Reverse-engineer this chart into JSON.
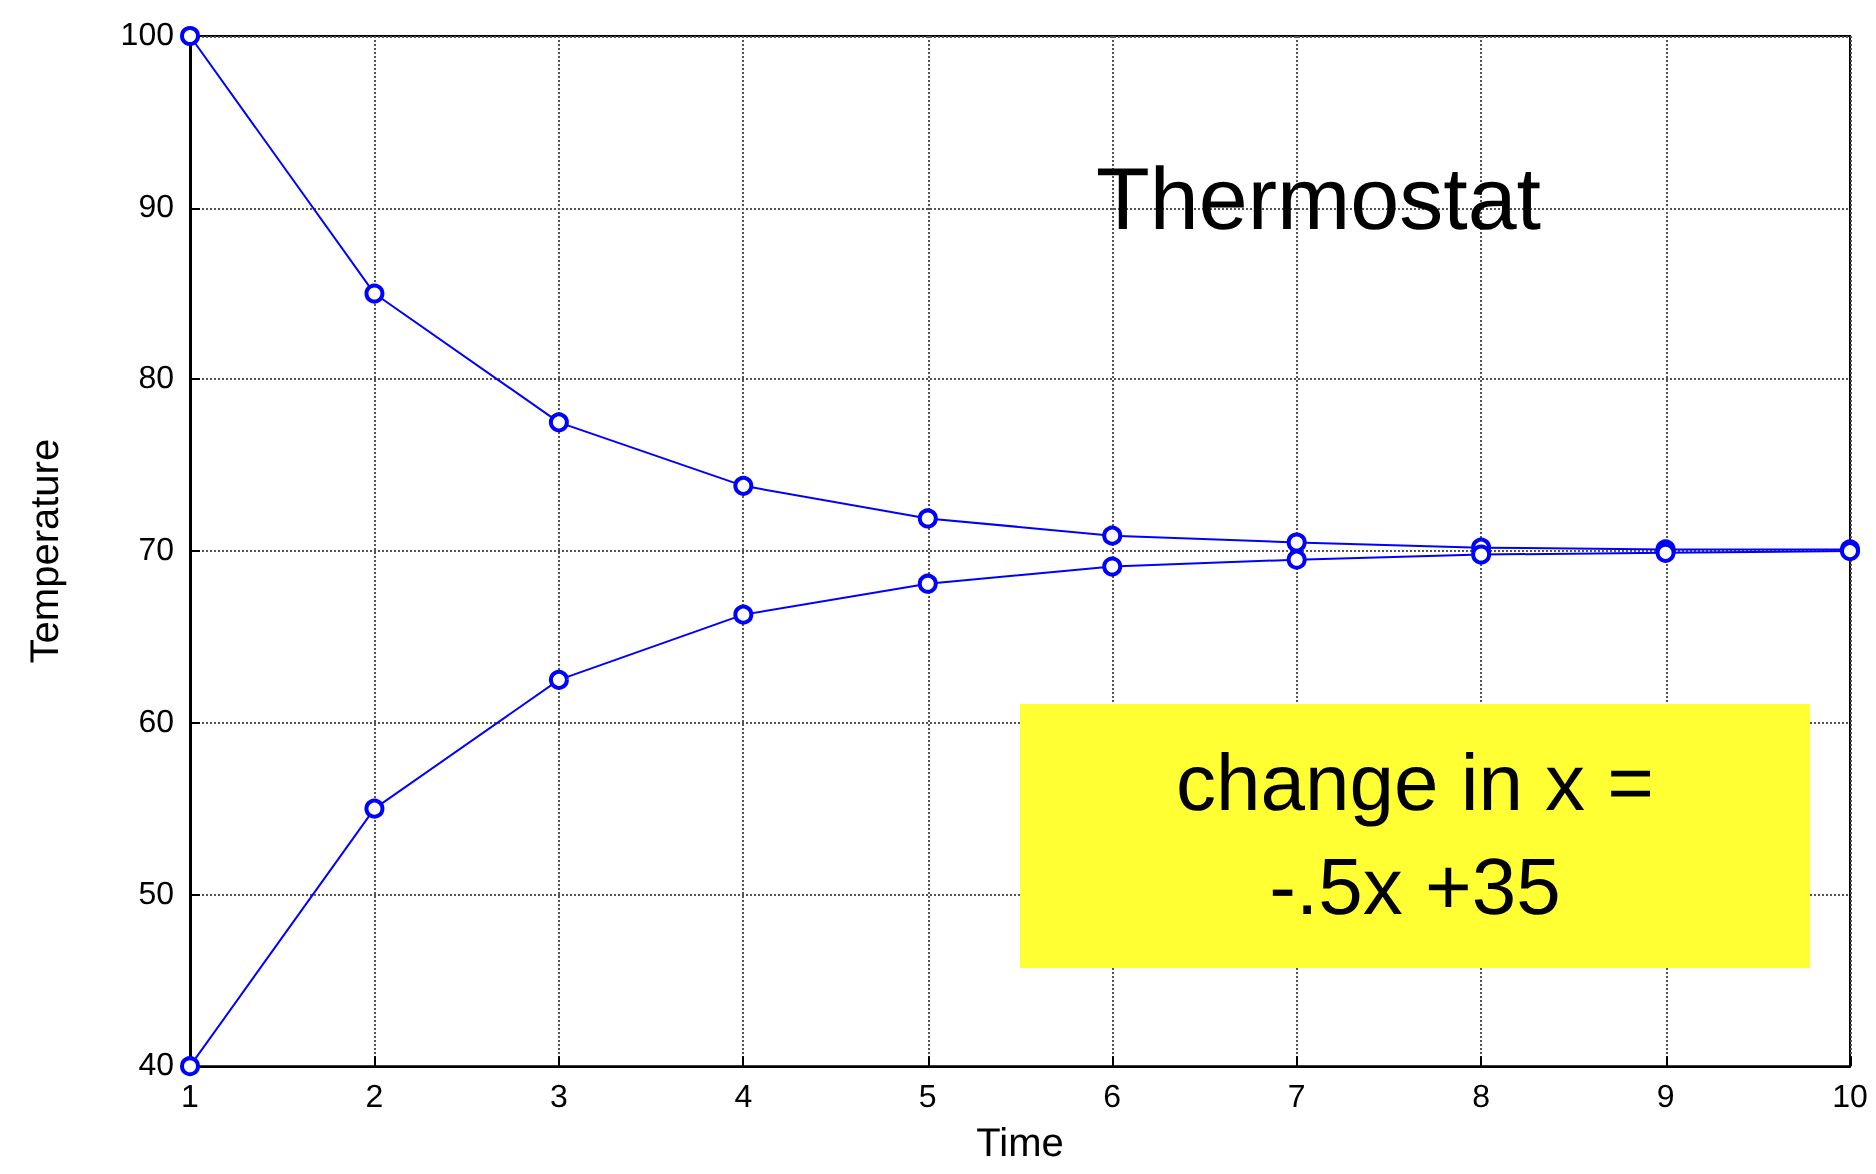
{
  "chart_data": {
    "type": "line",
    "xlabel": "Time",
    "ylabel": "Temperature",
    "x": [
      1,
      2,
      3,
      4,
      5,
      6,
      7,
      8,
      9,
      10
    ],
    "series": [
      {
        "color": "#0000ff",
        "values": [
          100,
          85,
          77.5,
          73.8,
          71.9,
          70.9,
          70.5,
          70.2,
          70.1,
          70.1
        ]
      },
      {
        "color": "#0000ff",
        "values": [
          40,
          55,
          62.5,
          66.3,
          68.1,
          69.1,
          69.5,
          69.8,
          69.9,
          70
        ]
      }
    ],
    "xlim": [
      1,
      10
    ],
    "xticks": [
      1,
      2,
      3,
      4,
      5,
      6,
      7,
      8,
      9,
      10
    ],
    "ylim": [
      40,
      100
    ],
    "yticks": [
      40,
      50,
      60,
      70,
      80,
      90,
      100
    ],
    "grid": true,
    "marker": "circle",
    "line_style": "solid",
    "annotations": [
      "Thermostat",
      "change in x =\n-.5x +35"
    ]
  }
}
